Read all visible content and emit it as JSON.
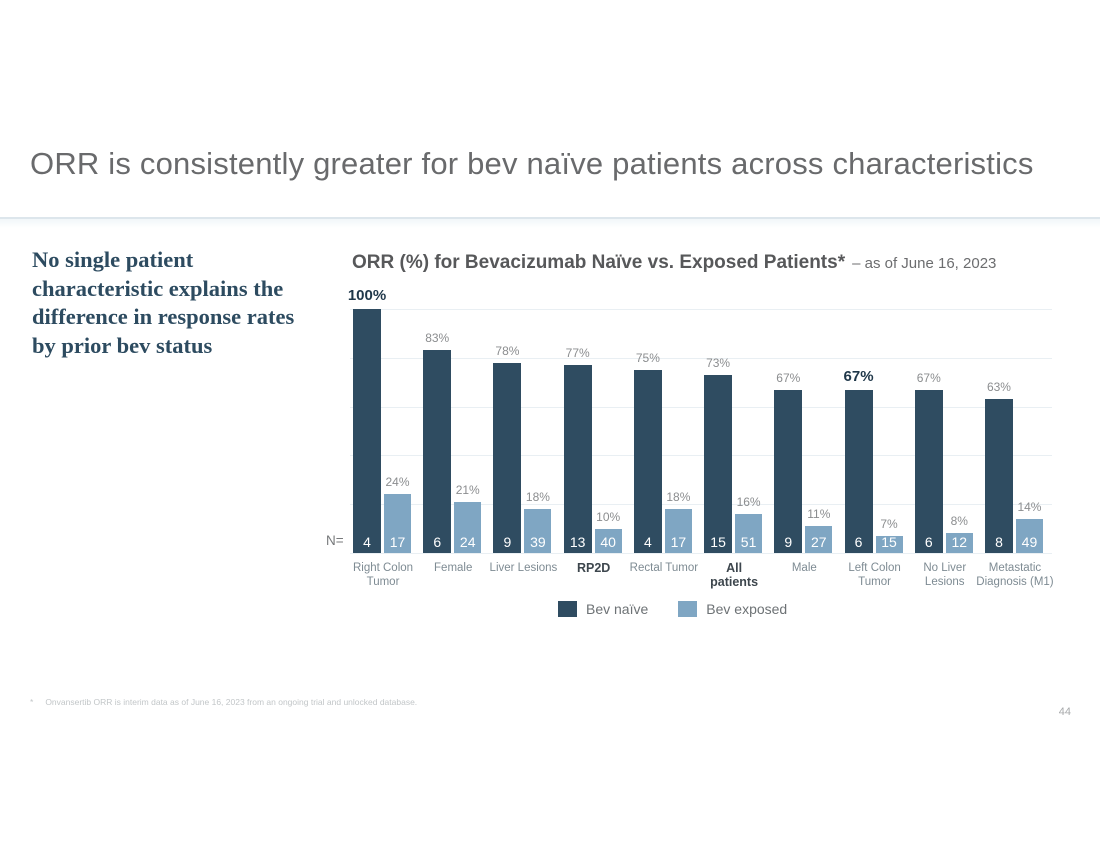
{
  "slide": {
    "title": "ORR is consistently greater for bev naïve patients across characteristics",
    "key_message": "No single patient characteristic explains the difference in response rates by prior bev status",
    "footnote_marker": "*",
    "footnote": "Onvansertib ORR is interim data as of June 16, 2023 from an ongoing trial and unlocked database.",
    "page_number": "44"
  },
  "chart": {
    "title_bold": "ORR (%) for Bevacizumab Naïve vs. Exposed Patients*",
    "title_suffix": "– as of June 16, 2023",
    "n_axis_label": "N="
  },
  "colors": {
    "bev_naive": "#2f4c61",
    "bev_exposed": "#7fa6c3",
    "emphasis_text": "#1f3749",
    "divider": "#dde6ec"
  },
  "chart_data": {
    "type": "bar",
    "title": "ORR (%) for Bevacizumab Naïve vs. Exposed Patients*",
    "subtitle": "– as of June 16, 2023",
    "xlabel": "",
    "ylabel": "ORR (%)",
    "ylim": [
      0,
      100
    ],
    "gridlines_pct": [
      0,
      20,
      40,
      60,
      80,
      100
    ],
    "grid": true,
    "legend_position": "bottom",
    "categories": [
      "Right Colon Tumor",
      "Female",
      "Liver Lesions",
      "RP2D",
      "Rectal Tumor",
      "All patients",
      "Male",
      "Left Colon Tumor",
      "No Liver Lesions",
      "Metastatic Diagnosis (M1)"
    ],
    "category_label_lines": [
      [
        "Right Colon",
        "Tumor"
      ],
      [
        "Female"
      ],
      [
        "Liver Lesions"
      ],
      [
        "RP2D"
      ],
      [
        "Rectal Tumor"
      ],
      [
        "All",
        "patients"
      ],
      [
        "Male"
      ],
      [
        "Left Colon",
        "Tumor"
      ],
      [
        "No Liver",
        "Lesions"
      ],
      [
        "Metastatic",
        "Diagnosis (M1)"
      ]
    ],
    "series": [
      {
        "name": "Bev naïve",
        "color": "#2f4c61",
        "values": [
          100,
          83,
          78,
          77,
          75,
          73,
          67,
          67,
          67,
          63
        ],
        "n": [
          4,
          6,
          9,
          13,
          4,
          15,
          9,
          6,
          6,
          8
        ]
      },
      {
        "name": "Bev exposed",
        "color": "#7fa6c3",
        "values": [
          24,
          21,
          18,
          10,
          18,
          16,
          11,
          7,
          8,
          14
        ],
        "n": [
          17,
          24,
          39,
          40,
          17,
          51,
          27,
          15,
          12,
          49
        ]
      }
    ],
    "n_axis_label": "N=",
    "bold_value_label_categories": [
      "Right Colon Tumor",
      "Left Colon Tumor"
    ],
    "bold_categories": [
      "RP2D",
      "All patients"
    ]
  }
}
